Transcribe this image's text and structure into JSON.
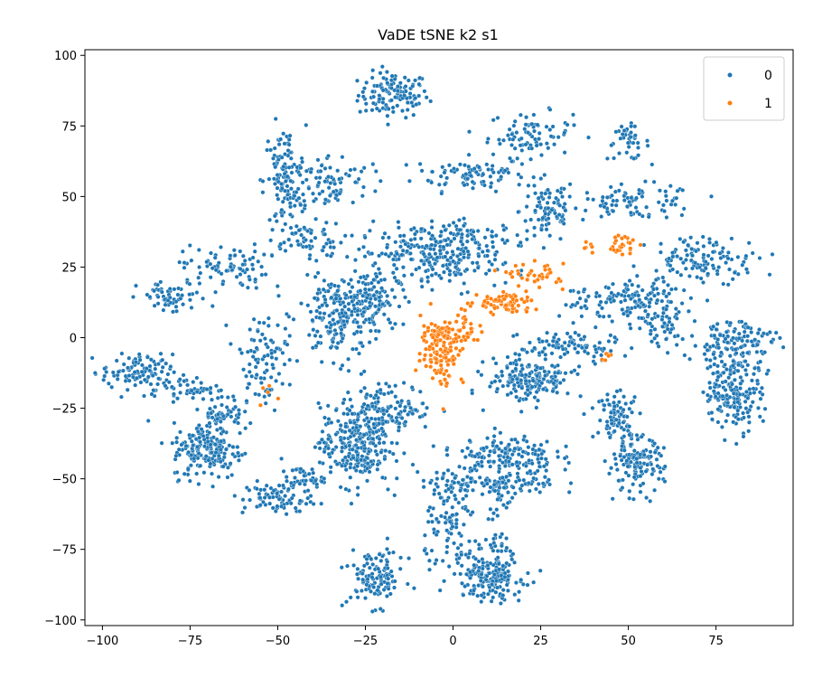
{
  "chart_data": {
    "type": "scatter",
    "title": "VaDE tSNE k2 s1",
    "xlabel": "",
    "ylabel": "",
    "xlim": [
      -105,
      97
    ],
    "ylim": [
      -102,
      102
    ],
    "xticks": [
      -100,
      -75,
      -50,
      -25,
      0,
      25,
      50,
      75
    ],
    "yticks": [
      -100,
      -75,
      -50,
      -25,
      0,
      25,
      50,
      75,
      100
    ],
    "xtick_labels": [
      "−100",
      "−75",
      "−50",
      "−25",
      "0",
      "25",
      "50",
      "75"
    ],
    "ytick_labels": [
      "−100",
      "−75",
      "−50",
      "−25",
      "0",
      "25",
      "50",
      "75",
      "100"
    ],
    "grid": false,
    "legend_position": "top-right",
    "series": [
      {
        "name": "0",
        "color": "#1f77b4",
        "clusters": [
          {
            "cx": -17,
            "cy": 86,
            "sx": 5,
            "sy": 4,
            "n": 120
          },
          {
            "cx": 5,
            "cy": 58,
            "sx": 8,
            "sy": 3,
            "n": 90
          },
          {
            "cx": 22,
            "cy": 72,
            "sx": 6,
            "sy": 4,
            "n": 80
          },
          {
            "cx": 50,
            "cy": 69,
            "sx": 3,
            "sy": 3,
            "n": 40
          },
          {
            "cx": 27,
            "cy": 45,
            "sx": 4,
            "sy": 6,
            "n": 80
          },
          {
            "cx": 52,
            "cy": 48,
            "sx": 9,
            "sy": 3,
            "n": 90
          },
          {
            "cx": -48,
            "cy": 55,
            "sx": 3,
            "sy": 10,
            "n": 130
          },
          {
            "cx": -35,
            "cy": 55,
            "sx": 6,
            "sy": 5,
            "n": 90
          },
          {
            "cx": -43,
            "cy": 35,
            "sx": 6,
            "sy": 3,
            "n": 50
          },
          {
            "cx": -65,
            "cy": 25,
            "sx": 6,
            "sy": 4,
            "n": 80
          },
          {
            "cx": -80,
            "cy": 14,
            "sx": 5,
            "sy": 3,
            "n": 60
          },
          {
            "cx": -10,
            "cy": 30,
            "sx": 8,
            "sy": 5,
            "n": 150
          },
          {
            "cx": 5,
            "cy": 35,
            "sx": 8,
            "sy": 3,
            "n": 90
          },
          {
            "cx": 3,
            "cy": 25,
            "sx": 6,
            "sy": 4,
            "n": 60
          },
          {
            "cx": -32,
            "cy": 8,
            "sx": 6,
            "sy": 8,
            "n": 220
          },
          {
            "cx": -24,
            "cy": 14,
            "sx": 4,
            "sy": 5,
            "n": 90
          },
          {
            "cx": -90,
            "cy": -12,
            "sx": 5,
            "sy": 3,
            "n": 100
          },
          {
            "cx": -78,
            "cy": -18,
            "sx": 5,
            "sy": 2,
            "n": 50
          },
          {
            "cx": -70,
            "cy": -40,
            "sx": 5,
            "sy": 5,
            "n": 180
          },
          {
            "cx": -66,
            "cy": -27,
            "sx": 3,
            "sy": 4,
            "n": 60
          },
          {
            "cx": -55,
            "cy": -8,
            "sx": 4,
            "sy": 8,
            "n": 90
          },
          {
            "cx": -50,
            "cy": -57,
            "sx": 5,
            "sy": 3,
            "n": 80
          },
          {
            "cx": -43,
            "cy": -50,
            "sx": 3,
            "sy": 2,
            "n": 40
          },
          {
            "cx": -28,
            "cy": -38,
            "sx": 5,
            "sy": 7,
            "n": 260
          },
          {
            "cx": -18,
            "cy": -25,
            "sx": 6,
            "sy": 4,
            "n": 130
          },
          {
            "cx": 15,
            "cy": -42,
            "sx": 7,
            "sy": 4,
            "n": 160
          },
          {
            "cx": 10,
            "cy": -52,
            "sx": 10,
            "sy": 2,
            "n": 120
          },
          {
            "cx": 0,
            "cy": -68,
            "sx": 4,
            "sy": 8,
            "n": 90
          },
          {
            "cx": 10,
            "cy": -85,
            "sx": 5,
            "sy": 4,
            "n": 160
          },
          {
            "cx": 13,
            "cy": -72,
            "sx": 2,
            "sy": 8,
            "n": 50
          },
          {
            "cx": -22,
            "cy": -85,
            "sx": 4,
            "sy": 5,
            "n": 120
          },
          {
            "cx": 22,
            "cy": -15,
            "sx": 6,
            "sy": 4,
            "n": 180
          },
          {
            "cx": 33,
            "cy": -3,
            "sx": 7,
            "sy": 3,
            "n": 90
          },
          {
            "cx": 42,
            "cy": 13,
            "sx": 6,
            "sy": 3,
            "n": 50
          },
          {
            "cx": 55,
            "cy": 12,
            "sx": 5,
            "sy": 4,
            "n": 100
          },
          {
            "cx": 72,
            "cy": 28,
            "sx": 8,
            "sy": 4,
            "n": 120
          },
          {
            "cx": 80,
            "cy": -20,
            "sx": 4,
            "sy": 6,
            "n": 170
          },
          {
            "cx": 80,
            "cy": -2,
            "sx": 6,
            "sy": 5,
            "n": 140
          },
          {
            "cx": 60,
            "cy": 4,
            "sx": 3,
            "sy": 4,
            "n": 40
          },
          {
            "cx": 52,
            "cy": -45,
            "sx": 4,
            "sy": 5,
            "n": 140
          },
          {
            "cx": 47,
            "cy": -28,
            "sx": 3,
            "sy": 4,
            "n": 80
          }
        ]
      },
      {
        "name": "1",
        "color": "#ff7f0e",
        "clusters": [
          {
            "cx": -3,
            "cy": -5,
            "sx": 3,
            "sy": 6,
            "n": 110
          },
          {
            "cx": -5,
            "cy": 2,
            "sx": 2,
            "sy": 2,
            "n": 30
          },
          {
            "cx": 4,
            "cy": 3,
            "sx": 3,
            "sy": 3,
            "n": 40
          },
          {
            "cx": 15,
            "cy": 12,
            "sx": 4,
            "sy": 2,
            "n": 70
          },
          {
            "cx": 24,
            "cy": 22,
            "sx": 4,
            "sy": 2,
            "n": 40
          },
          {
            "cx": 48,
            "cy": 33,
            "sx": 2,
            "sy": 2,
            "n": 30
          },
          {
            "cx": 39,
            "cy": 32,
            "sx": 1,
            "sy": 1,
            "n": 6
          },
          {
            "cx": 44,
            "cy": -7,
            "sx": 1,
            "sy": 1,
            "n": 6
          },
          {
            "cx": -53,
            "cy": -18,
            "sx": 2,
            "sy": 3,
            "n": 5
          }
        ]
      }
    ]
  }
}
